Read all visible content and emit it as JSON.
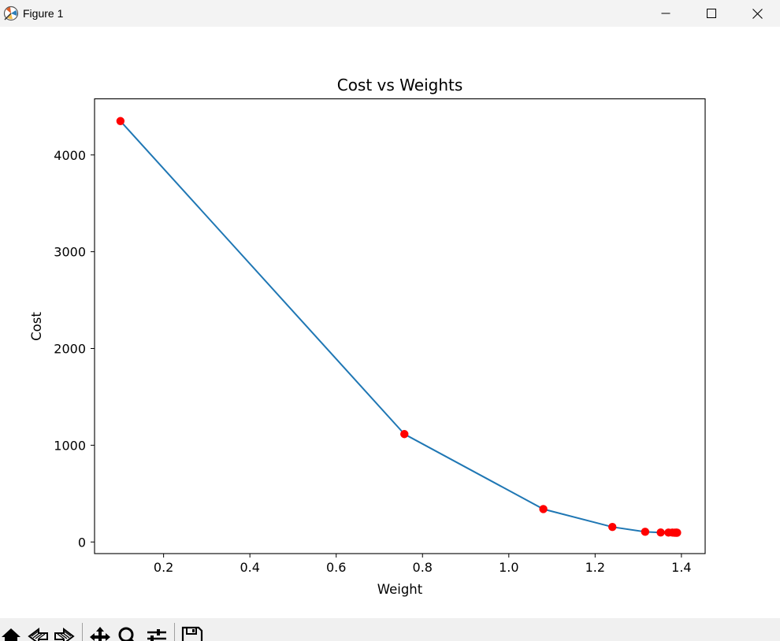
{
  "window": {
    "title": "Figure 1",
    "controls": [
      "minimize-icon",
      "maximize-icon",
      "close-icon"
    ]
  },
  "toolbar": {
    "tools": [
      "home-icon",
      "back-arrow-icon",
      "forward-arrow-icon",
      "pan-icon",
      "zoom-icon",
      "configure-subplots-icon",
      "save-icon"
    ]
  },
  "chart_data": {
    "type": "line",
    "title": "Cost vs Weights",
    "xlabel": "Weight",
    "ylabel": "Cost",
    "xlim": [
      0.04,
      1.455
    ],
    "ylim": [
      -120,
      4580
    ],
    "xticks": [
      0.2,
      0.4,
      0.6,
      0.8,
      1.0,
      1.2,
      1.4
    ],
    "xtick_labels": [
      "0.2",
      "0.4",
      "0.6",
      "0.8",
      "1.0",
      "1.2",
      "1.4"
    ],
    "yticks": [
      0,
      1000,
      2000,
      3000,
      4000
    ],
    "ytick_labels": [
      "0",
      "1000",
      "2000",
      "3000",
      "4000"
    ],
    "grid": false,
    "series": [
      {
        "line_color": "#1f77b4",
        "marker_color": "#ff0000",
        "x": [
          0.1,
          0.758,
          1.08,
          1.24,
          1.316,
          1.352,
          1.37,
          1.379,
          1.384,
          1.386,
          1.388,
          1.389,
          1.39
        ],
        "y": [
          4350,
          1115,
          340,
          155,
          105,
          98,
          97,
          97,
          96,
          96,
          96,
          96,
          96
        ]
      }
    ]
  }
}
